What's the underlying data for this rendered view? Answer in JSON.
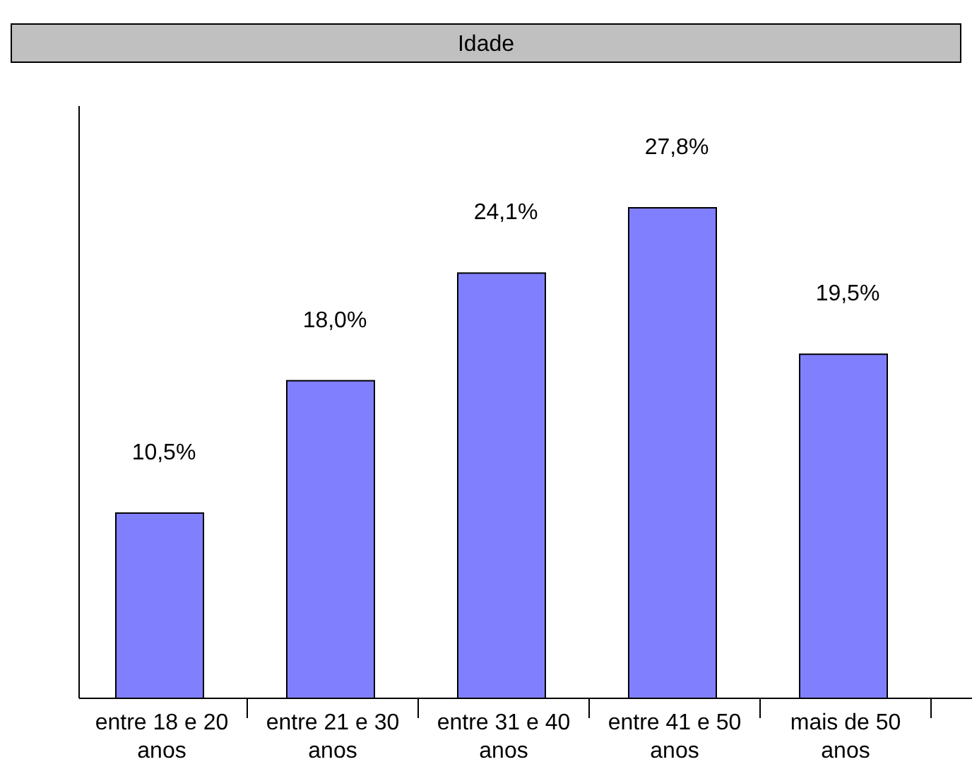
{
  "chart_data": {
    "type": "bar",
    "title": "Idade",
    "categories": [
      "entre 18 e 20 anos",
      "entre 21 e 30 anos",
      "entre 31 e 40 anos",
      "entre 41 e 50 anos",
      "mais de 50 anos"
    ],
    "values": [
      10.5,
      18.0,
      24.1,
      27.8,
      19.5
    ],
    "value_labels": [
      "10,5%",
      "18,0%",
      "24,1%",
      "27,8%",
      "19,5%"
    ],
    "color": "#8080ff",
    "grid": false
  }
}
